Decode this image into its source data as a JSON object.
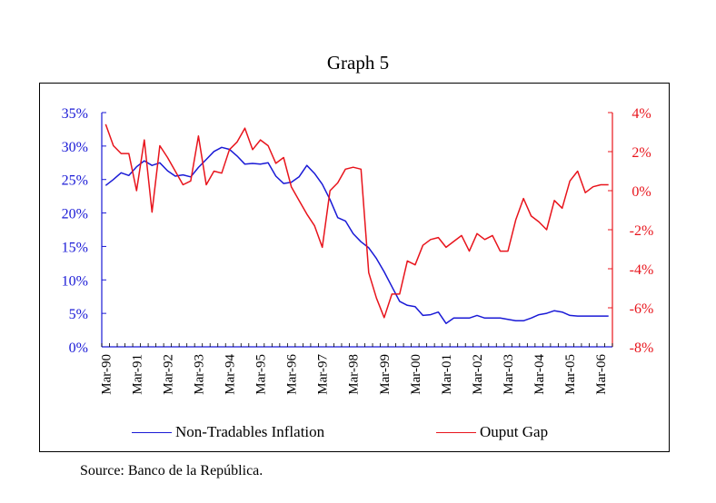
{
  "title": "Graph 5",
  "source": "Source: Banco de la República.",
  "colors": {
    "inflation": "#1a1ad6",
    "gap": "#e8141c",
    "frame": "#000000"
  },
  "chart_data": {
    "type": "line",
    "title": "Graph 5",
    "xlabel": "",
    "ylabel": "",
    "y2label": "",
    "grid": false,
    "legend_position": "bottom",
    "x_tick_labels": [
      "Mar-90",
      "Mar-91",
      "Mar-92",
      "Mar-93",
      "Mar-94",
      "Mar-95",
      "Mar-96",
      "Mar-97",
      "Mar-98",
      "Mar-99",
      "Mar-00",
      "Mar-01",
      "Mar-02",
      "Mar-03",
      "Mar-04",
      "Mar-05",
      "Mar-06"
    ],
    "x_tick_step_quarters": 4,
    "n_quarters": 66,
    "x_start": "Mar-90",
    "x_end": "Jun-06",
    "left_axis": {
      "ylim": [
        0,
        35
      ],
      "ticks": [
        0,
        5,
        10,
        15,
        20,
        25,
        30,
        35
      ],
      "tick_labels": [
        "0%",
        "5%",
        "10%",
        "15%",
        "20%",
        "25%",
        "30%",
        "35%"
      ],
      "color": "#1a1ad6"
    },
    "right_axis": {
      "ylim": [
        -8,
        4
      ],
      "ticks": [
        -8,
        -6,
        -4,
        -2,
        0,
        2,
        4
      ],
      "tick_labels": [
        "-8%",
        "-6%",
        "-4%",
        "-2%",
        "0%",
        "2%",
        "4%"
      ],
      "color": "#e8141c"
    },
    "series": [
      {
        "name": "Non-Tradables Inflation",
        "axis": "left",
        "color": "#1a1ad6",
        "values": [
          24.1,
          25.0,
          26.0,
          25.6,
          26.9,
          27.8,
          27.1,
          27.5,
          26.3,
          25.5,
          25.7,
          25.4,
          26.8,
          28.0,
          29.2,
          29.8,
          29.5,
          28.5,
          27.3,
          27.4,
          27.3,
          27.5,
          25.5,
          24.4,
          24.6,
          25.4,
          27.1,
          25.9,
          24.3,
          22.0,
          19.3,
          18.8,
          16.9,
          15.7,
          14.8,
          13.2,
          11.2,
          9.0,
          6.8,
          6.2,
          6.0,
          4.7,
          4.8,
          5.2,
          3.5,
          4.3,
          4.3,
          4.3,
          4.7,
          4.3,
          4.3,
          4.3,
          4.1,
          3.9,
          3.9,
          4.3,
          4.8,
          5.0,
          5.4,
          5.2,
          4.7,
          4.6,
          4.6,
          4.6,
          4.6,
          4.6
        ]
      },
      {
        "name": "Ouput Gap",
        "axis": "right",
        "color": "#e8141c",
        "values": [
          3.4,
          2.3,
          1.9,
          1.9,
          0.0,
          2.6,
          -1.1,
          2.3,
          1.7,
          1.0,
          0.3,
          0.5,
          2.8,
          0.3,
          1.0,
          0.9,
          2.1,
          2.5,
          3.2,
          2.1,
          2.6,
          2.3,
          1.4,
          1.7,
          0.2,
          -0.5,
          -1.2,
          -1.8,
          -2.9,
          0.0,
          0.4,
          1.1,
          1.2,
          1.1,
          -4.2,
          -5.5,
          -6.5,
          -5.3,
          -5.3,
          -3.6,
          -3.8,
          -2.8,
          -2.5,
          -2.4,
          -2.9,
          -2.6,
          -2.3,
          -3.1,
          -2.2,
          -2.5,
          -2.3,
          -3.1,
          -3.1,
          -1.5,
          -0.4,
          -1.3,
          -1.6,
          -2.0,
          -0.5,
          -0.9,
          0.5,
          1.0,
          -0.1,
          0.2,
          0.3,
          0.3
        ]
      }
    ]
  },
  "legend": [
    {
      "label": "Non-Tradables Inflation",
      "color": "#1a1ad6"
    },
    {
      "label": "Ouput Gap",
      "color": "#e8141c"
    }
  ]
}
